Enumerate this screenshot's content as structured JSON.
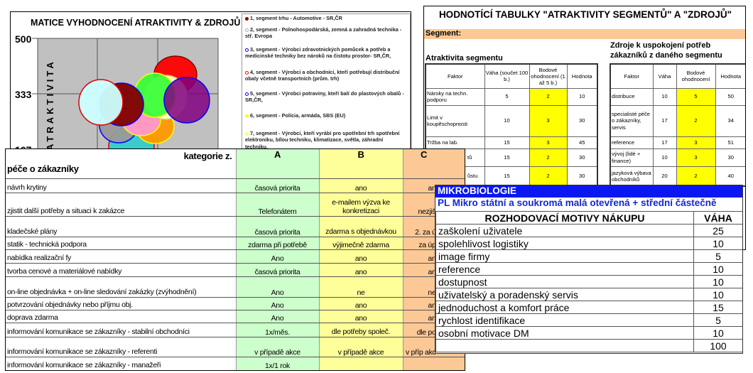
{
  "matrix": {
    "title": "MATICE VYHODNOCENÍ ATRAKTIVITY & ZDROJŮ",
    "y_ticks": [
      "500",
      "333",
      "167"
    ],
    "y_axis_label": "ATRAKTIVITA",
    "legend": [
      {
        "text": "1, segment trhu - Automotive - SR,ČR",
        "color": "#8b0000"
      },
      {
        "text": "2, segment - Polnohospodárská, zemná a zahradná technika - stř. Evropa",
        "color": "#ffffcc"
      },
      {
        "text": "3, segment - Výrobci zdravotnických pomůcek a potřeb a medicinské techniky bez nároků na čistotu prostor- SR,ČR,",
        "color": "#0000ff"
      },
      {
        "text": "4, segment - Výrobci a obchodníci, kteří potřebují distribuční obaly včetně transportních (prům. trh)",
        "color": "#ff0000"
      },
      {
        "text": "5, segment - Výrobci potraviny, kteří balí do plastových obalů - SR,ČR,",
        "color": "#0000ff"
      },
      {
        "text": "6, segment - Polícia, armáda, SBS (EU)",
        "color": "#ffff00"
      },
      {
        "text": "7, segment - Výrobci, kteří vyrábí pro spotřební trh spotřební elektroniku, bílou techniku, klimatizace, světla, záhradní techniku,",
        "color": "#ffff66"
      }
    ]
  },
  "evaluation": {
    "title": "HODNOTÍCÍ TABULKY \"ATRAKTIVITY SEGMENTŮ\" A \"ZDROJŮ\"",
    "segment_label": "Segment:",
    "attractiveness": {
      "heading": "Atraktivita segmentu",
      "headers": [
        "Faktor",
        "Váha (součet 100 b.)",
        "Bodové ohodnocení (1 až 5 b.)",
        "Hodnota"
      ],
      "rows": [
        [
          "Nároky na techn. podporu",
          "5",
          "2",
          "10"
        ],
        [
          "Limit v koupěschopnosti",
          "10",
          "3",
          "30"
        ],
        [
          "Tržba na lab.",
          "15",
          "3",
          "45"
        ],
        [
          "tů",
          "15",
          "2",
          "30"
        ],
        [
          "ůstu",
          "15",
          "2",
          "30"
        ]
      ]
    },
    "resources": {
      "heading": "Zdroje k uspokojení potřeb zákazníků z daného segmentu",
      "headers": [
        "Faktor",
        "Váha",
        "Bodové ohodnocení",
        "Hodnota"
      ],
      "rows": [
        [
          "distribuce",
          "10",
          "5",
          "50"
        ],
        [
          "specialisté péče o zákazníky, servis",
          "17",
          "2",
          "34"
        ],
        [
          "reference",
          "17",
          "3",
          "51"
        ],
        [
          "vývoj (lidé + finance)",
          "10",
          "3",
          "30"
        ],
        [
          "jazyková výbava obchodníků",
          "20",
          "2",
          "40"
        ]
      ]
    }
  },
  "care": {
    "header_right": "kategorie z.",
    "header_left": "péče o zákazníky",
    "columns": [
      "A",
      "B",
      "C"
    ],
    "rows": [
      [
        "návrh krytiny",
        "časová priorita",
        "ano",
        "an"
      ],
      [
        "zjistit další potřeby a situaci k zakázce",
        "Telefonátem",
        "e-mailem výzva ke konkretizaci",
        "nezjiš"
      ],
      [
        "kladečské plány",
        "časová priorita",
        "zdarma s objednávkou",
        "2. za ú"
      ],
      [
        "statik - technická podpora",
        "zdarma při potřebě",
        "výjimečně zdarma",
        "za úp"
      ],
      [
        "nabídka realizační fy",
        "Ano",
        "ano",
        "an"
      ],
      [
        "tvorba cenové a materiálové nabídky",
        "časová priorita",
        "ano",
        "an"
      ],
      [
        "on-line objednávka + on-line sledování zakázky (zvýhodnění)",
        "Ano",
        "ne",
        "ne"
      ],
      [
        "potvrzování objednávky nebo příjmu obj.",
        "Ano",
        "ano",
        "an"
      ],
      [
        "doprava zdarma",
        "Ano",
        "ano",
        "an"
      ],
      [
        "informování komunikace se zákazníky - stabilní obchodníci",
        "1x/měs.",
        "dle potřeby společ.",
        "dle po"
      ],
      [
        "informování komunikace se zákazníky - referenti",
        "v případě akce",
        "v případě akce",
        "v příp akc"
      ],
      [
        "informování komunikace se zákazníky - manažeři",
        "1x/1 rok",
        "",
        ""
      ]
    ]
  },
  "micro": {
    "band": "MIKROBIOLOGIE",
    "subtitle": "PL Mikro státní a soukromá malá otevřená + střední částečně",
    "headers": [
      "ROZHODOVACÍ MOTIVY NÁKUPU",
      "VÁHA"
    ],
    "rows": [
      [
        "zaškolení uživatele",
        "25"
      ],
      [
        "spolehlivost logistiky",
        "10"
      ],
      [
        "image firmy",
        "5"
      ],
      [
        "reference",
        "10"
      ],
      [
        "dostupnost",
        "10"
      ],
      [
        "uživatelský a poradenský servis",
        "10"
      ],
      [
        "jednoduchost a komfort práce",
        "15"
      ],
      [
        "rychlost identifikace",
        "5"
      ],
      [
        "osobní motivace DM",
        "10"
      ]
    ],
    "total": "100"
  }
}
